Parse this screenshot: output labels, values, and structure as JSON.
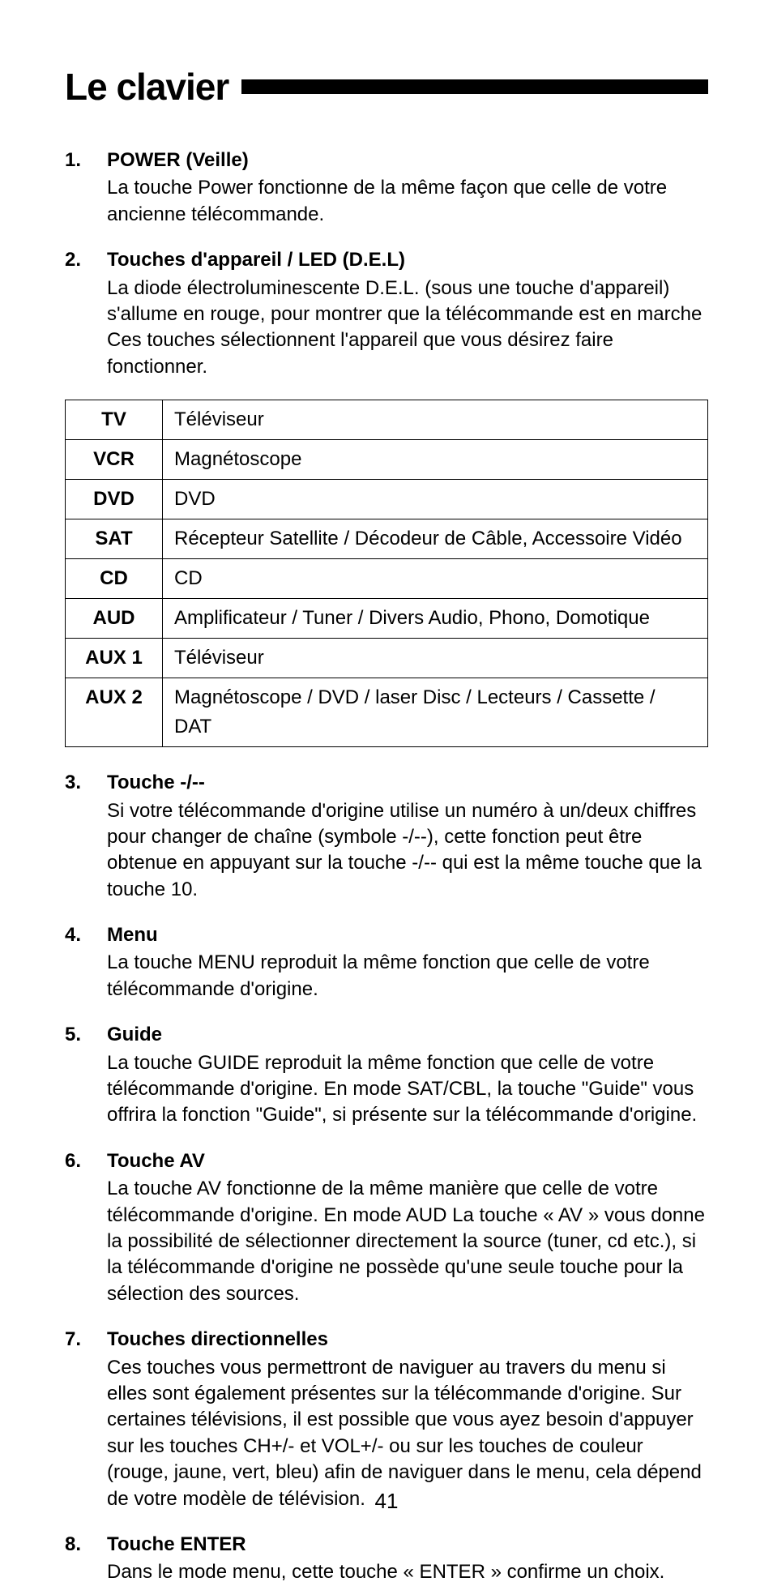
{
  "page": {
    "title": "Le clavier",
    "number": "41"
  },
  "items": [
    {
      "num": "1.",
      "title": "POWER (Veille)",
      "body": "La touche Power fonctionne de la même façon que celle de votre ancienne télécommande."
    },
    {
      "num": "2.",
      "title": "Touches d'appareil / LED (D.E.L)",
      "body": "La diode électroluminescente D.E.L. (sous une touche d'appareil) s'allume en rouge, pour montrer que la télécommande est en marche Ces touches sélectionnent l'appareil que vous désirez faire fonctionner."
    },
    {
      "num": "3.",
      "title": "Touche -/--",
      "body": "Si votre télécommande d'origine utilise un numéro à un/deux chiffres pour changer de chaîne (symbole -/--), cette fonction peut être obtenue en appuyant sur la touche -/-- qui est la même touche que la touche 10."
    },
    {
      "num": "4.",
      "title": "Menu",
      "body": "La touche MENU reproduit la même fonction que celle de votre télécommande d'origine."
    },
    {
      "num": "5.",
      "title": "Guide",
      "body": "La touche GUIDE reproduit la même fonction que celle de votre télécommande d'origine. En mode SAT/CBL, la touche \"Guide\" vous offrira la fonction \"Guide\", si présente sur la télécommande d'origine."
    },
    {
      "num": "6.",
      "title": "Touche AV",
      "body": "La touche AV fonctionne de la même manière que celle de votre télécommande d'origine. En mode AUD La touche « AV » vous donne la possibilité de sélectionner directement la source (tuner, cd etc.), si la télécommande d'origine ne possède qu'une seule touche pour la sélection des sources."
    },
    {
      "num": "7.",
      "title": "Touches directionnelles",
      "body": "Ces touches vous permettront de naviguer au travers du menu si elles sont également présentes sur la télécommande d'origine. Sur certaines télévisions, il est possible que vous ayez besoin d'appuyer sur les touches CH+/- et VOL+/- ou sur les touches de couleur (rouge, jaune, vert, bleu) afin de naviguer dans le menu, cela dépend de votre modèle de télévision."
    },
    {
      "num": "8.",
      "title": "Touche ENTER",
      "body": "Dans le mode menu, cette touche « ENTER » confirme un choix."
    }
  ],
  "table": {
    "rows": [
      {
        "code": "TV",
        "desc": "Téléviseur"
      },
      {
        "code": "VCR",
        "desc": "Magnétoscope"
      },
      {
        "code": "DVD",
        "desc": "DVD"
      },
      {
        "code": "SAT",
        "desc": "Récepteur Satellite / Décodeur de Câble, Accessoire Vidéo"
      },
      {
        "code": "CD",
        "desc": "CD"
      },
      {
        "code": "AUD",
        "desc": "Amplificateur / Tuner / Divers Audio, Phono, Domotique"
      },
      {
        "code": "AUX 1",
        "desc": "Téléviseur"
      },
      {
        "code": "AUX 2",
        "desc": "Magnétoscope / DVD / laser Disc / Lecteurs / Cassette / DAT"
      }
    ]
  }
}
